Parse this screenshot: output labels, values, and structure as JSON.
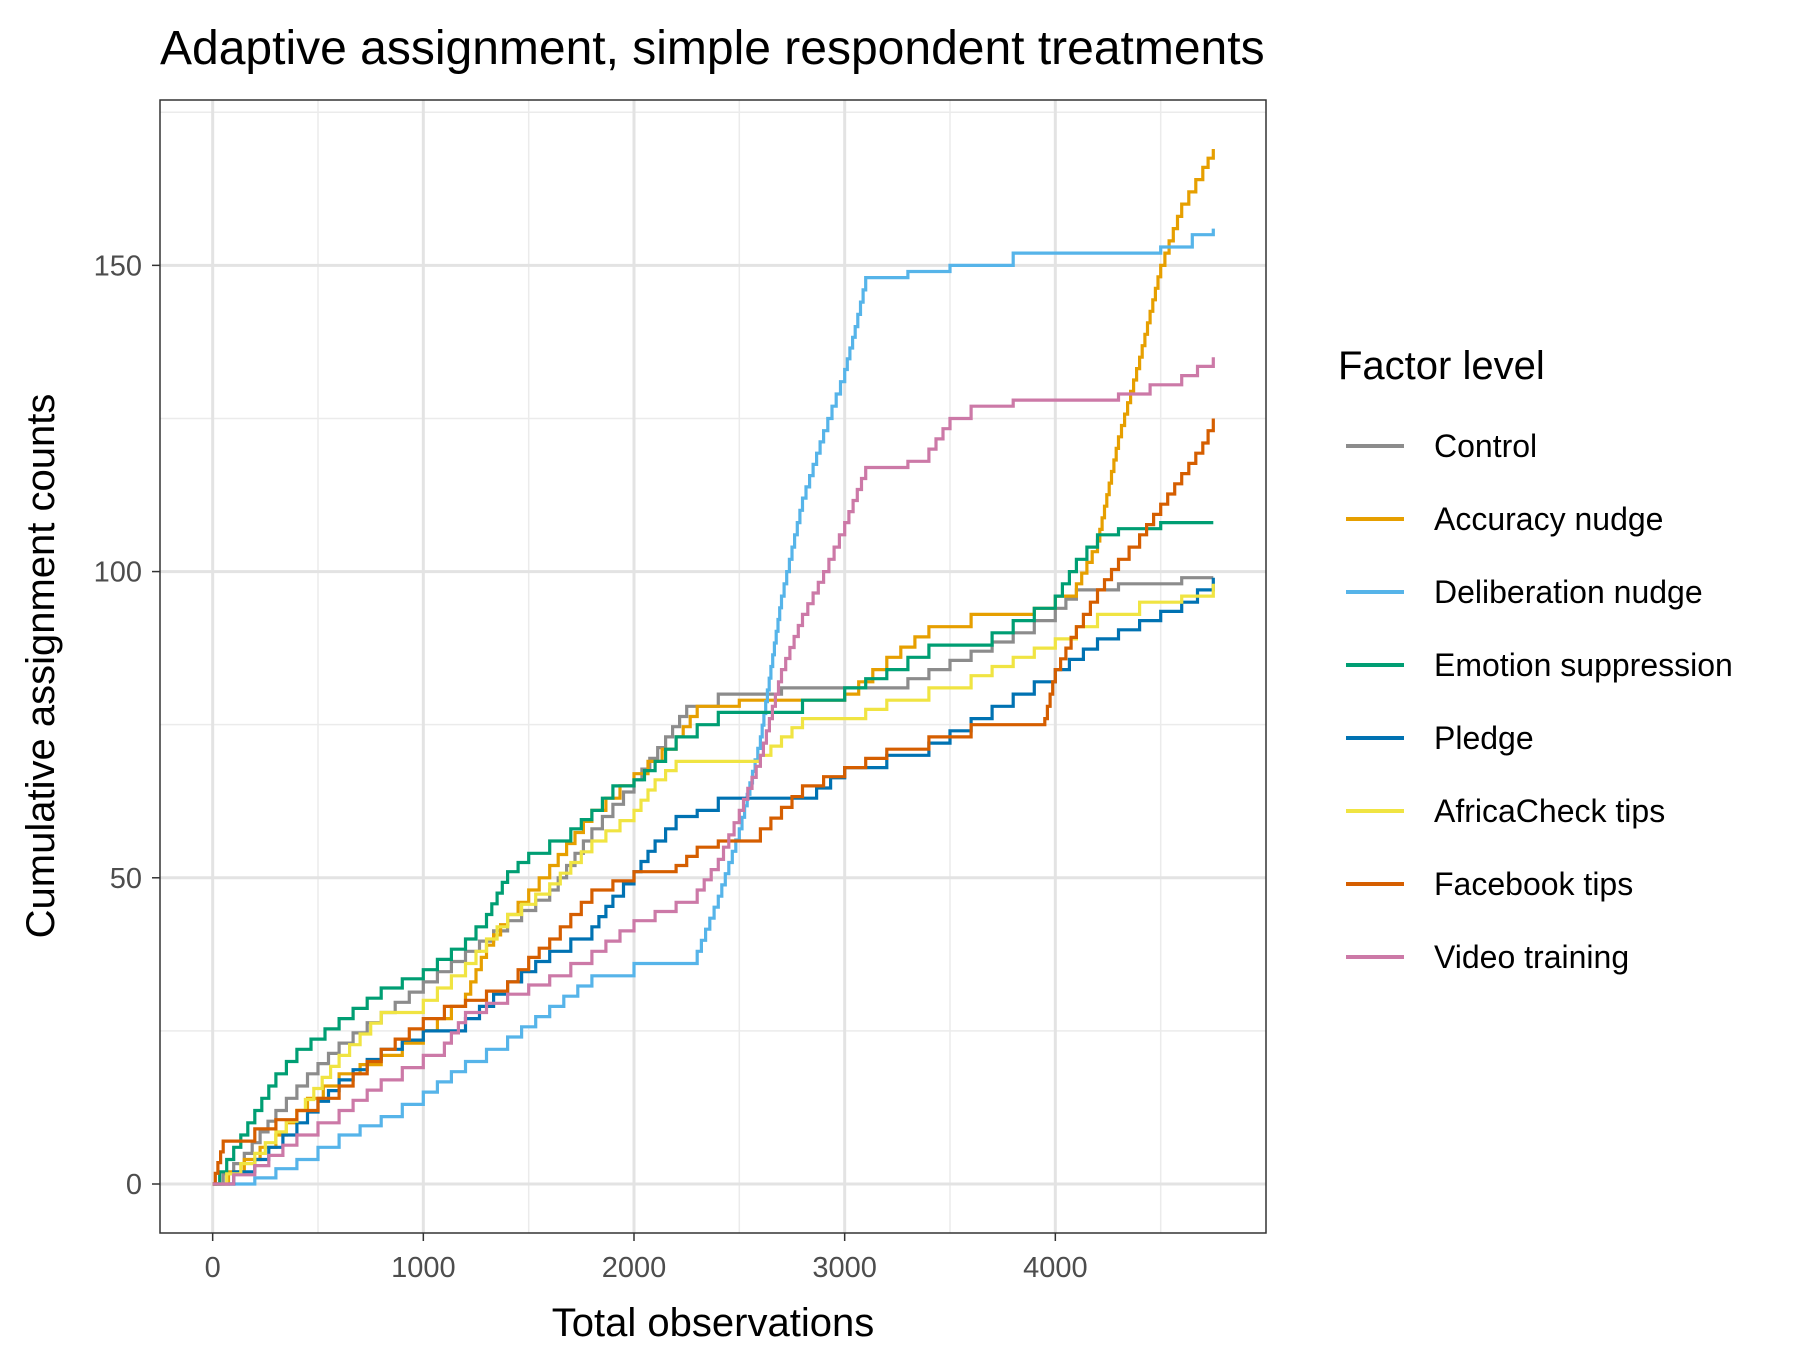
{
  "chart_data": {
    "type": "line",
    "title": "Adaptive assignment, simple respondent treatments",
    "xlabel": "Total observations",
    "ylabel": "Cumulative assignment counts",
    "xlim": [
      -250,
      5000
    ],
    "ylim": [
      -8,
      177
    ],
    "x_ticks": [
      0,
      1000,
      2000,
      3000,
      4000
    ],
    "y_ticks": [
      0,
      50,
      100,
      150
    ],
    "grid": true,
    "legend": {
      "title": "Factor level",
      "position": "right"
    },
    "series": [
      {
        "name": "Control",
        "color": "#8c8c8c",
        "points": [
          [
            0,
            0
          ],
          [
            150,
            5
          ],
          [
            300,
            12
          ],
          [
            450,
            18
          ],
          [
            600,
            23
          ],
          [
            800,
            28
          ],
          [
            1000,
            33
          ],
          [
            1200,
            38
          ],
          [
            1400,
            43
          ],
          [
            1600,
            48
          ],
          [
            1800,
            58
          ],
          [
            2000,
            66
          ],
          [
            2150,
            73
          ],
          [
            2250,
            78
          ],
          [
            2400,
            80
          ],
          [
            2700,
            81
          ],
          [
            3000,
            81
          ],
          [
            3200,
            81
          ],
          [
            3400,
            84
          ],
          [
            3600,
            87
          ],
          [
            3800,
            90
          ],
          [
            4000,
            94
          ],
          [
            4100,
            97
          ],
          [
            4300,
            98
          ],
          [
            4600,
            99
          ],
          [
            4750,
            99
          ]
        ]
      },
      {
        "name": "Accuracy nudge",
        "color": "#e69f00",
        "points": [
          [
            0,
            0
          ],
          [
            150,
            4
          ],
          [
            300,
            8
          ],
          [
            450,
            14
          ],
          [
            600,
            18
          ],
          [
            800,
            21
          ],
          [
            1000,
            25
          ],
          [
            1200,
            31
          ],
          [
            1300,
            39
          ],
          [
            1400,
            44
          ],
          [
            1600,
            52
          ],
          [
            1800,
            61
          ],
          [
            2000,
            67
          ],
          [
            2200,
            73
          ],
          [
            2300,
            78
          ],
          [
            2500,
            79
          ],
          [
            2700,
            79
          ],
          [
            3000,
            80
          ],
          [
            3200,
            86
          ],
          [
            3400,
            91
          ],
          [
            3600,
            93
          ],
          [
            3900,
            94
          ],
          [
            4100,
            98
          ],
          [
            4200,
            105
          ],
          [
            4300,
            122
          ],
          [
            4400,
            135
          ],
          [
            4500,
            150
          ],
          [
            4600,
            160
          ],
          [
            4700,
            166
          ],
          [
            4750,
            169
          ]
        ]
      },
      {
        "name": "Deliberation nudge",
        "color": "#56b4e9",
        "points": [
          [
            0,
            0
          ],
          [
            200,
            1
          ],
          [
            400,
            4
          ],
          [
            600,
            8
          ],
          [
            800,
            11
          ],
          [
            1000,
            15
          ],
          [
            1200,
            20
          ],
          [
            1400,
            24
          ],
          [
            1600,
            29
          ],
          [
            1800,
            34
          ],
          [
            2000,
            36
          ],
          [
            2200,
            36
          ],
          [
            2300,
            38
          ],
          [
            2400,
            47
          ],
          [
            2500,
            58
          ],
          [
            2600,
            73
          ],
          [
            2700,
            96
          ],
          [
            2800,
            112
          ],
          [
            2900,
            123
          ],
          [
            3000,
            133
          ],
          [
            3050,
            140
          ],
          [
            3100,
            148
          ],
          [
            3300,
            149
          ],
          [
            3500,
            150
          ],
          [
            3800,
            152
          ],
          [
            4200,
            152
          ],
          [
            4500,
            153
          ],
          [
            4650,
            155
          ],
          [
            4750,
            156
          ]
        ]
      },
      {
        "name": "Emotion suppression",
        "color": "#009e73",
        "points": [
          [
            0,
            0
          ],
          [
            100,
            6
          ],
          [
            200,
            12
          ],
          [
            300,
            18
          ],
          [
            400,
            22
          ],
          [
            600,
            27
          ],
          [
            800,
            32
          ],
          [
            1000,
            35
          ],
          [
            1200,
            40
          ],
          [
            1300,
            44
          ],
          [
            1400,
            51
          ],
          [
            1500,
            54
          ],
          [
            1700,
            58
          ],
          [
            1800,
            61
          ],
          [
            1900,
            65
          ],
          [
            2000,
            66
          ],
          [
            2100,
            69
          ],
          [
            2200,
            73
          ],
          [
            2400,
            77
          ],
          [
            2600,
            77
          ],
          [
            2800,
            79
          ],
          [
            3000,
            81
          ],
          [
            3200,
            84
          ],
          [
            3400,
            88
          ],
          [
            3600,
            88
          ],
          [
            3800,
            92
          ],
          [
            4000,
            96
          ],
          [
            4100,
            102
          ],
          [
            4200,
            106
          ],
          [
            4300,
            107
          ],
          [
            4500,
            108
          ],
          [
            4750,
            108
          ]
        ]
      },
      {
        "name": "Pledge",
        "color": "#0072b2",
        "points": [
          [
            0,
            0
          ],
          [
            200,
            4
          ],
          [
            400,
            10
          ],
          [
            600,
            17
          ],
          [
            800,
            22
          ],
          [
            1000,
            25
          ],
          [
            1200,
            27
          ],
          [
            1400,
            33
          ],
          [
            1600,
            38
          ],
          [
            1800,
            42
          ],
          [
            1900,
            47
          ],
          [
            2000,
            51
          ],
          [
            2100,
            56
          ],
          [
            2200,
            60
          ],
          [
            2300,
            61
          ],
          [
            2400,
            63
          ],
          [
            2600,
            63
          ],
          [
            2800,
            63
          ],
          [
            3000,
            68
          ],
          [
            3200,
            70
          ],
          [
            3400,
            72
          ],
          [
            3600,
            76
          ],
          [
            3800,
            80
          ],
          [
            4000,
            84
          ],
          [
            4200,
            89
          ],
          [
            4400,
            92
          ],
          [
            4600,
            95
          ],
          [
            4750,
            99
          ]
        ]
      },
      {
        "name": "AfricaCheck tips",
        "color": "#f0e442",
        "points": [
          [
            0,
            0
          ],
          [
            200,
            5
          ],
          [
            400,
            12
          ],
          [
            600,
            21
          ],
          [
            800,
            28
          ],
          [
            1000,
            30
          ],
          [
            1200,
            36
          ],
          [
            1400,
            44
          ],
          [
            1600,
            49
          ],
          [
            1800,
            56
          ],
          [
            2000,
            61
          ],
          [
            2100,
            66
          ],
          [
            2200,
            69
          ],
          [
            2400,
            69
          ],
          [
            2600,
            70
          ],
          [
            2700,
            73
          ],
          [
            2800,
            76
          ],
          [
            3000,
            76
          ],
          [
            3200,
            79
          ],
          [
            3400,
            81
          ],
          [
            3600,
            83
          ],
          [
            3800,
            86
          ],
          [
            4000,
            89
          ],
          [
            4200,
            93
          ],
          [
            4400,
            95
          ],
          [
            4600,
            96
          ],
          [
            4750,
            98
          ]
        ]
      },
      {
        "name": "Facebook tips",
        "color": "#d55e00",
        "points": [
          [
            0,
            0
          ],
          [
            50,
            7
          ],
          [
            200,
            9
          ],
          [
            400,
            12
          ],
          [
            600,
            16
          ],
          [
            800,
            22
          ],
          [
            1000,
            27
          ],
          [
            1100,
            29
          ],
          [
            1200,
            30
          ],
          [
            1400,
            33
          ],
          [
            1500,
            37
          ],
          [
            1600,
            40
          ],
          [
            1700,
            44
          ],
          [
            1800,
            48
          ],
          [
            2000,
            51
          ],
          [
            2200,
            52
          ],
          [
            2300,
            55
          ],
          [
            2400,
            56
          ],
          [
            2600,
            58
          ],
          [
            2800,
            65
          ],
          [
            3000,
            68
          ],
          [
            3200,
            71
          ],
          [
            3400,
            73
          ],
          [
            3600,
            75
          ],
          [
            3800,
            75
          ],
          [
            3950,
            76
          ],
          [
            4000,
            84
          ],
          [
            4100,
            91
          ],
          [
            4200,
            97
          ],
          [
            4300,
            102
          ],
          [
            4400,
            106
          ],
          [
            4500,
            111
          ],
          [
            4600,
            116
          ],
          [
            4700,
            121
          ],
          [
            4750,
            125
          ]
        ]
      },
      {
        "name": "Video training",
        "color": "#cc79a7",
        "points": [
          [
            0,
            0
          ],
          [
            200,
            3
          ],
          [
            400,
            8
          ],
          [
            600,
            12
          ],
          [
            800,
            17
          ],
          [
            1000,
            21
          ],
          [
            1100,
            23
          ],
          [
            1200,
            28
          ],
          [
            1400,
            31
          ],
          [
            1600,
            34
          ],
          [
            1800,
            38
          ],
          [
            2000,
            43
          ],
          [
            2200,
            46
          ],
          [
            2300,
            48
          ],
          [
            2400,
            53
          ],
          [
            2500,
            61
          ],
          [
            2600,
            70
          ],
          [
            2700,
            84
          ],
          [
            2800,
            93
          ],
          [
            2900,
            100
          ],
          [
            3000,
            108
          ],
          [
            3100,
            117
          ],
          [
            3300,
            118
          ],
          [
            3400,
            120
          ],
          [
            3500,
            125
          ],
          [
            3600,
            127
          ],
          [
            3800,
            128
          ],
          [
            4000,
            128
          ],
          [
            4300,
            129
          ],
          [
            4600,
            132
          ],
          [
            4750,
            135
          ]
        ]
      }
    ]
  }
}
